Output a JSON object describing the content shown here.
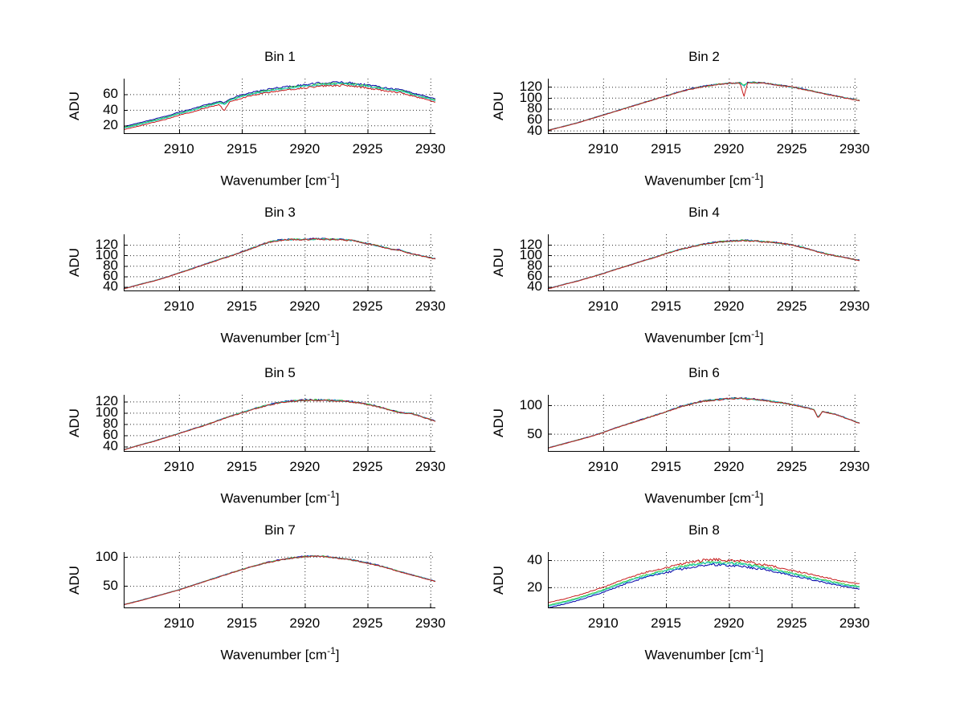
{
  "figure": {
    "background": "#ffffff",
    "axis_color": "#000000",
    "grid_color": "#2b2b2b",
    "text_color": "#000000"
  },
  "chart_data": [
    {
      "type": "line",
      "title": "Bin 1",
      "ylabel": "ADU",
      "xlabel_base": "Wavenumber [cm",
      "xlabel_sup": "-1",
      "xlabel_end": "]",
      "xlim": [
        2905.6,
        2930.4
      ],
      "ylim": [
        10,
        80
      ],
      "xticks": [
        2910,
        2915,
        2920,
        2925,
        2930
      ],
      "yticks": [
        20,
        40,
        60
      ],
      "grid": true,
      "noise": 1.2,
      "curve": [
        [
          2905.6,
          14.5
        ],
        [
          2907,
          20
        ],
        [
          2908,
          24
        ],
        [
          2909,
          28
        ],
        [
          2910,
          33
        ],
        [
          2911,
          37
        ],
        [
          2912,
          42
        ],
        [
          2913,
          46
        ],
        [
          2914,
          50
        ],
        [
          2915,
          55
        ],
        [
          2916,
          59
        ],
        [
          2917,
          62
        ],
        [
          2918,
          64.5
        ],
        [
          2919,
          66.5
        ],
        [
          2920,
          68
        ],
        [
          2921,
          70
        ],
        [
          2922,
          71
        ],
        [
          2923,
          71.5
        ],
        [
          2924,
          70
        ],
        [
          2925,
          68
        ],
        [
          2926,
          65.5
        ],
        [
          2927,
          63
        ],
        [
          2927.8,
          61.5
        ],
        [
          2928.5,
          58
        ],
        [
          2929.5,
          54
        ],
        [
          2930.4,
          50
        ]
      ],
      "series": [
        {
          "name": "blue",
          "color": "#0000A8",
          "offset": 4.0
        },
        {
          "name": "green",
          "color": "#33CC33",
          "offset": 2.6
        },
        {
          "name": "cyan",
          "color": "#1FC8C8",
          "offset": 1.8
        },
        {
          "name": "red",
          "color": "#C61A1A",
          "offset": 0
        }
      ],
      "spikes": [
        {
          "x": 2913.6,
          "width": 0.4,
          "depths": {
            "blue": 3.5,
            "green": 3.5,
            "cyan": 3.5,
            "red": 10
          }
        }
      ]
    },
    {
      "type": "line",
      "title": "Bin 2",
      "ylabel": "ADU",
      "xlabel_base": "Wavenumber [cm",
      "xlabel_sup": "-1",
      "xlabel_end": "]",
      "xlim": [
        2905.6,
        2930.4
      ],
      "ylim": [
        35,
        135
      ],
      "xticks": [
        2910,
        2915,
        2920,
        2925,
        2930
      ],
      "yticks": [
        40,
        60,
        80,
        100,
        120
      ],
      "grid": true,
      "noise": 1.1,
      "curve": [
        [
          2905.6,
          40
        ],
        [
          2907,
          48
        ],
        [
          2908,
          54
        ],
        [
          2909,
          61
        ],
        [
          2910,
          68
        ],
        [
          2911,
          75
        ],
        [
          2912,
          82
        ],
        [
          2913,
          89
        ],
        [
          2914,
          96
        ],
        [
          2915,
          103
        ],
        [
          2916,
          110
        ],
        [
          2917,
          116
        ],
        [
          2918,
          120.5
        ],
        [
          2919,
          124
        ],
        [
          2920,
          126
        ],
        [
          2921,
          127
        ],
        [
          2922,
          127.5
        ],
        [
          2923,
          126
        ],
        [
          2924,
          122.5
        ],
        [
          2925,
          119.5
        ],
        [
          2925.8,
          116
        ],
        [
          2926.5,
          112.5
        ],
        [
          2927.5,
          107.5
        ],
        [
          2928.5,
          103
        ],
        [
          2929.5,
          98.5
        ],
        [
          2930.4,
          94.5
        ]
      ],
      "series": [
        {
          "name": "blue",
          "color": "#0000A8",
          "offset": 0.6
        },
        {
          "name": "green",
          "color": "#33CC33",
          "offset": 0.35
        },
        {
          "name": "cyan",
          "color": "#1FC8C8",
          "offset": 0.2
        },
        {
          "name": "red",
          "color": "#C61A1A",
          "offset": 0
        }
      ],
      "spikes": [
        {
          "x": 2921.2,
          "width": 0.3,
          "depths": {
            "blue": 5,
            "green": 5,
            "cyan": 5,
            "red": 24
          }
        }
      ]
    },
    {
      "type": "line",
      "title": "Bin 3",
      "ylabel": "ADU",
      "xlabel_base": "Wavenumber [cm",
      "xlabel_sup": "-1",
      "xlabel_end": "]",
      "xlim": [
        2905.6,
        2930.4
      ],
      "ylim": [
        33,
        140
      ],
      "xticks": [
        2910,
        2915,
        2920,
        2925,
        2930
      ],
      "yticks": [
        40,
        60,
        80,
        100,
        120
      ],
      "grid": true,
      "noise": 1.4,
      "curve": [
        [
          2905.6,
          36
        ],
        [
          2907,
          45
        ],
        [
          2908,
          51
        ],
        [
          2909,
          58
        ],
        [
          2910,
          66
        ],
        [
          2911,
          74
        ],
        [
          2912,
          82
        ],
        [
          2913,
          90
        ],
        [
          2914,
          98
        ],
        [
          2915,
          106
        ],
        [
          2916,
          115
        ],
        [
          2916.8,
          122
        ],
        [
          2917.5,
          127
        ],
        [
          2918.2,
          129
        ],
        [
          2919,
          130
        ],
        [
          2920,
          130
        ],
        [
          2921,
          131
        ],
        [
          2922,
          130
        ],
        [
          2923,
          129.5
        ],
        [
          2923.8,
          128
        ],
        [
          2924.5,
          124
        ],
        [
          2925.5,
          119.5
        ],
        [
          2926.3,
          115
        ],
        [
          2927,
          111
        ],
        [
          2927.6,
          109.5
        ],
        [
          2928.3,
          104
        ],
        [
          2929,
          100
        ],
        [
          2929.8,
          96
        ],
        [
          2930.4,
          93
        ]
      ],
      "series": [
        {
          "name": "blue",
          "color": "#0000A8",
          "offset": 0.6
        },
        {
          "name": "green",
          "color": "#33CC33",
          "offset": 0.35
        },
        {
          "name": "cyan",
          "color": "#1FC8C8",
          "offset": 0.2
        },
        {
          "name": "red",
          "color": "#C61A1A",
          "offset": 0
        }
      ],
      "spikes": []
    },
    {
      "type": "line",
      "title": "Bin 4",
      "ylabel": "ADU",
      "xlabel_base": "Wavenumber [cm",
      "xlabel_sup": "-1",
      "xlabel_end": "]",
      "xlim": [
        2905.6,
        2930.4
      ],
      "ylim": [
        33,
        140
      ],
      "xticks": [
        2910,
        2915,
        2920,
        2925,
        2930
      ],
      "yticks": [
        40,
        60,
        80,
        100,
        120
      ],
      "grid": true,
      "noise": 1.3,
      "curve": [
        [
          2905.6,
          36
        ],
        [
          2907,
          45
        ],
        [
          2908,
          51
        ],
        [
          2909,
          58
        ],
        [
          2910,
          65
        ],
        [
          2911,
          73
        ],
        [
          2912,
          80
        ],
        [
          2913,
          88
        ],
        [
          2914,
          95
        ],
        [
          2915,
          103
        ],
        [
          2916,
          110
        ],
        [
          2917,
          116
        ],
        [
          2918,
          121
        ],
        [
          2919,
          124.5
        ],
        [
          2920,
          126.5
        ],
        [
          2921,
          128
        ],
        [
          2921.8,
          127.5
        ],
        [
          2922.5,
          126
        ],
        [
          2923.5,
          124.5
        ],
        [
          2924.5,
          121.5
        ],
        [
          2925.5,
          117
        ],
        [
          2926.3,
          112
        ],
        [
          2927,
          107
        ],
        [
          2928,
          101
        ],
        [
          2929,
          96.5
        ],
        [
          2930.4,
          90
        ]
      ],
      "series": [
        {
          "name": "blue",
          "color": "#0000A8",
          "offset": 0.6
        },
        {
          "name": "green",
          "color": "#33CC33",
          "offset": 0.35
        },
        {
          "name": "cyan",
          "color": "#1FC8C8",
          "offset": 0.2
        },
        {
          "name": "red",
          "color": "#C61A1A",
          "offset": 0
        }
      ],
      "spikes": []
    },
    {
      "type": "line",
      "title": "Bin 5",
      "ylabel": "ADU",
      "xlabel_base": "Wavenumber [cm",
      "xlabel_sup": "-1",
      "xlabel_end": "]",
      "xlim": [
        2905.6,
        2930.4
      ],
      "ylim": [
        32,
        132
      ],
      "xticks": [
        2910,
        2915,
        2920,
        2925,
        2930
      ],
      "yticks": [
        40,
        60,
        80,
        100,
        120
      ],
      "grid": true,
      "noise": 1.3,
      "curve": [
        [
          2905.6,
          34
        ],
        [
          2907,
          43
        ],
        [
          2908,
          49
        ],
        [
          2909,
          56
        ],
        [
          2910,
          63
        ],
        [
          2911,
          70
        ],
        [
          2912,
          77
        ],
        [
          2913,
          85
        ],
        [
          2914,
          93
        ],
        [
          2915,
          100
        ],
        [
          2916,
          107
        ],
        [
          2917,
          113
        ],
        [
          2917.8,
          117
        ],
        [
          2918.5,
          119.5
        ],
        [
          2919.5,
          121.5
        ],
        [
          2920.5,
          122.5
        ],
        [
          2921.5,
          122
        ],
        [
          2922.5,
          121.5
        ],
        [
          2923.5,
          120
        ],
        [
          2924.3,
          117.5
        ],
        [
          2925.3,
          113.5
        ],
        [
          2926.2,
          108.5
        ],
        [
          2927,
          103.5
        ],
        [
          2927.7,
          99.5
        ],
        [
          2928.4,
          99
        ],
        [
          2929.2,
          93.5
        ],
        [
          2930.4,
          85
        ]
      ],
      "series": [
        {
          "name": "blue",
          "color": "#0000A8",
          "offset": 0.6
        },
        {
          "name": "green",
          "color": "#33CC33",
          "offset": 0.35
        },
        {
          "name": "cyan",
          "color": "#1FC8C8",
          "offset": 0.2
        },
        {
          "name": "red",
          "color": "#C61A1A",
          "offset": 0
        }
      ],
      "spikes": []
    },
    {
      "type": "line",
      "title": "Bin 6",
      "ylabel": "ADU",
      "xlabel_base": "Wavenumber [cm",
      "xlabel_sup": "-1",
      "xlabel_end": "]",
      "xlim": [
        2905.6,
        2930.4
      ],
      "ylim": [
        20,
        118
      ],
      "xticks": [
        2910,
        2915,
        2920,
        2925,
        2930
      ],
      "yticks": [
        50,
        100
      ],
      "grid": true,
      "noise": 1.2,
      "curve": [
        [
          2905.6,
          25
        ],
        [
          2907,
          33
        ],
        [
          2908,
          39
        ],
        [
          2909,
          45
        ],
        [
          2910,
          52
        ],
        [
          2911,
          60
        ],
        [
          2912,
          67
        ],
        [
          2913,
          74
        ],
        [
          2914,
          81
        ],
        [
          2915,
          88
        ],
        [
          2916,
          96
        ],
        [
          2917,
          102
        ],
        [
          2918,
          106.5
        ],
        [
          2919,
          109
        ],
        [
          2920,
          111
        ],
        [
          2921,
          111.5
        ],
        [
          2922,
          110
        ],
        [
          2923,
          107.5
        ],
        [
          2924,
          104.5
        ],
        [
          2925,
          101
        ],
        [
          2926,
          96
        ],
        [
          2926.8,
          92
        ],
        [
          2927.6,
          88
        ],
        [
          2928.4,
          84
        ],
        [
          2929.2,
          78
        ],
        [
          2930.4,
          68
        ]
      ],
      "series": [
        {
          "name": "blue",
          "color": "#0000A8",
          "offset": 0.6
        },
        {
          "name": "green",
          "color": "#33CC33",
          "offset": 0.35
        },
        {
          "name": "cyan",
          "color": "#1FC8C8",
          "offset": 0.2
        },
        {
          "name": "red",
          "color": "#C61A1A",
          "offset": 0
        }
      ],
      "spikes": [
        {
          "x": 2927.1,
          "width": 0.35,
          "depths": {
            "blue": 12,
            "green": 12,
            "cyan": 12,
            "red": 13
          }
        }
      ]
    },
    {
      "type": "line",
      "title": "Bin 7",
      "ylabel": "ADU",
      "xlabel_base": "Wavenumber [cm",
      "xlabel_sup": "-1",
      "xlabel_end": "]",
      "xlim": [
        2905.6,
        2930.4
      ],
      "ylim": [
        13,
        108
      ],
      "xticks": [
        2910,
        2915,
        2920,
        2925,
        2930
      ],
      "yticks": [
        50,
        100
      ],
      "grid": true,
      "noise": 1.0,
      "curve": [
        [
          2905.6,
          17.5
        ],
        [
          2907,
          25
        ],
        [
          2908,
          31
        ],
        [
          2909,
          37
        ],
        [
          2910,
          43
        ],
        [
          2911,
          50
        ],
        [
          2912,
          57
        ],
        [
          2913,
          64
        ],
        [
          2914,
          71
        ],
        [
          2915,
          77.5
        ],
        [
          2916,
          84
        ],
        [
          2917,
          89.5
        ],
        [
          2918,
          94
        ],
        [
          2919,
          97.5
        ],
        [
          2920,
          100
        ],
        [
          2920.8,
          101
        ],
        [
          2921.6,
          100
        ],
        [
          2922.5,
          98
        ],
        [
          2923.5,
          95
        ],
        [
          2924.5,
          91
        ],
        [
          2925.5,
          86.5
        ],
        [
          2926.5,
          81
        ],
        [
          2927.5,
          74.5
        ],
        [
          2928.5,
          68.5
        ],
        [
          2929.4,
          63.5
        ],
        [
          2930.4,
          57.5
        ]
      ],
      "series": [
        {
          "name": "blue",
          "color": "#0000A8",
          "offset": 0.6
        },
        {
          "name": "green",
          "color": "#33CC33",
          "offset": 0.35
        },
        {
          "name": "cyan",
          "color": "#1FC8C8",
          "offset": 0.2
        },
        {
          "name": "red",
          "color": "#C61A1A",
          "offset": 0
        }
      ],
      "spikes": []
    },
    {
      "type": "line",
      "title": "Bin 8",
      "ylabel": "ADU",
      "xlabel_base": "Wavenumber [cm",
      "xlabel_sup": "-1",
      "xlabel_end": "]",
      "xlim": [
        2905.6,
        2930.4
      ],
      "ylim": [
        5,
        46
      ],
      "xticks": [
        2910,
        2915,
        2920,
        2925,
        2930
      ],
      "yticks": [
        20,
        40
      ],
      "grid": true,
      "noise": 0.9,
      "curve": [
        [
          2905.6,
          8.5
        ],
        [
          2907,
          11.5
        ],
        [
          2908,
          14
        ],
        [
          2909,
          17
        ],
        [
          2910,
          20
        ],
        [
          2911,
          23.5
        ],
        [
          2912,
          27
        ],
        [
          2913,
          30
        ],
        [
          2914,
          32.5
        ],
        [
          2915,
          34.5
        ],
        [
          2916,
          37
        ],
        [
          2917,
          38.5
        ],
        [
          2918,
          40
        ],
        [
          2919,
          40.5
        ],
        [
          2920,
          40
        ],
        [
          2921,
          39.5
        ],
        [
          2922,
          38
        ],
        [
          2923,
          36.5
        ],
        [
          2924,
          34.5
        ],
        [
          2925,
          32.5
        ],
        [
          2926,
          30.5
        ],
        [
          2927,
          28.5
        ],
        [
          2928,
          26.5
        ],
        [
          2929,
          24.5
        ],
        [
          2930.4,
          22.5
        ]
      ],
      "series": [
        {
          "name": "blue",
          "color": "#0000A8",
          "offset": -3.8
        },
        {
          "name": "green",
          "color": "#33CC33",
          "offset": -1.9
        },
        {
          "name": "cyan",
          "color": "#1FC8C8",
          "offset": -2.6
        },
        {
          "name": "red",
          "color": "#C61A1A",
          "offset": 0
        }
      ],
      "spikes": []
    }
  ]
}
